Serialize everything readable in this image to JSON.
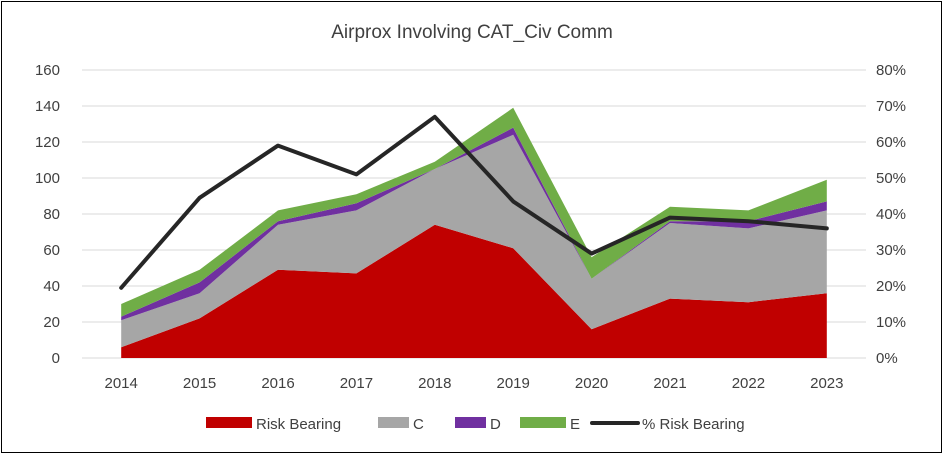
{
  "chart_data": {
    "type": "area",
    "stacked": true,
    "title": "Airprox Involving CAT_Civ Comm",
    "categories": [
      "2014",
      "2015",
      "2016",
      "2017",
      "2018",
      "2019",
      "2020",
      "2021",
      "2022",
      "2023"
    ],
    "ylim": [
      0,
      160
    ],
    "yticks": [
      "0",
      "20",
      "40",
      "60",
      "80",
      "100",
      "120",
      "140",
      "160"
    ],
    "y2lim": [
      0,
      0.8
    ],
    "y2ticks": [
      "0%",
      "10%",
      "20%",
      "30%",
      "40%",
      "50%",
      "60%",
      "70%",
      "80%"
    ],
    "grid": true,
    "legend_position": "bottom",
    "series": [
      {
        "name": "Risk Bearing",
        "type": "area",
        "color": "#C00000",
        "values": [
          6,
          22,
          49,
          47,
          74,
          61,
          16,
          33,
          31,
          36
        ]
      },
      {
        "name": "C",
        "type": "area",
        "color": "#A6A6A6",
        "values": [
          15,
          14,
          25,
          35,
          31,
          63,
          28,
          42,
          41,
          46
        ]
      },
      {
        "name": "D",
        "type": "area",
        "color": "#7030A0",
        "values": [
          2,
          6,
          2,
          4,
          0,
          4,
          0,
          1,
          4,
          5
        ]
      },
      {
        "name": "E",
        "type": "area",
        "color": "#70AD47",
        "values": [
          7,
          7,
          6,
          5,
          4,
          11,
          12,
          8,
          6,
          12
        ]
      },
      {
        "name": "% Risk Bearing",
        "type": "line",
        "axis": "secondary",
        "color": "#262626",
        "values": [
          0.195,
          0.445,
          0.59,
          0.51,
          0.67,
          0.435,
          0.29,
          0.39,
          0.38,
          0.36
        ]
      }
    ]
  }
}
